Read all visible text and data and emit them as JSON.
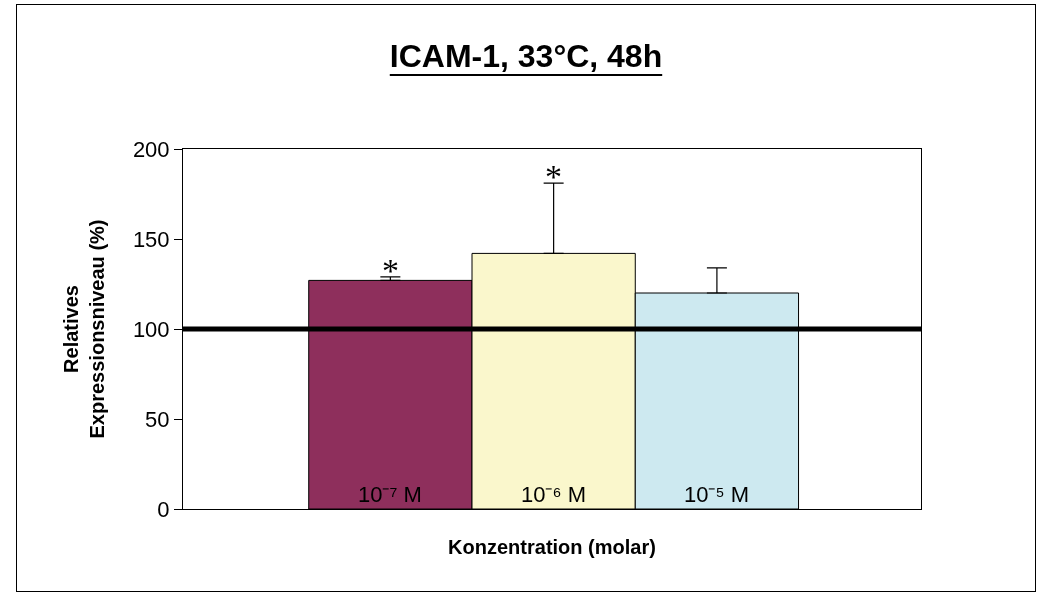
{
  "chart_data": {
    "type": "bar",
    "title": "ICAM-1, 33°C, 48h",
    "xlabel": "Konzentration (molar)",
    "ylabel": "Relatives\nExpressionsniveau (%)",
    "categories": [
      "10⁻⁷ M",
      "10⁻⁶ M",
      "10⁻⁵ M"
    ],
    "values": [
      127,
      142,
      120
    ],
    "colors": [
      "#8e2f5c",
      "#faf7cc",
      "#cde9f0"
    ],
    "errors": [
      [
        127,
        129
      ],
      [
        142,
        181
      ],
      [
        120,
        134
      ]
    ],
    "ylim": [
      0,
      200
    ],
    "yticks": [
      0,
      50,
      100,
      150,
      200
    ],
    "grid": false,
    "ref_lines": [
      {
        "axis": "y",
        "value": 100,
        "color": "#000000",
        "line_style": "solid"
      }
    ],
    "annotations": [
      {
        "text": "*",
        "x": "10⁻⁷ M",
        "y": 129
      },
      {
        "text": "*",
        "x": "10⁻⁶ M",
        "y": 181
      }
    ]
  }
}
